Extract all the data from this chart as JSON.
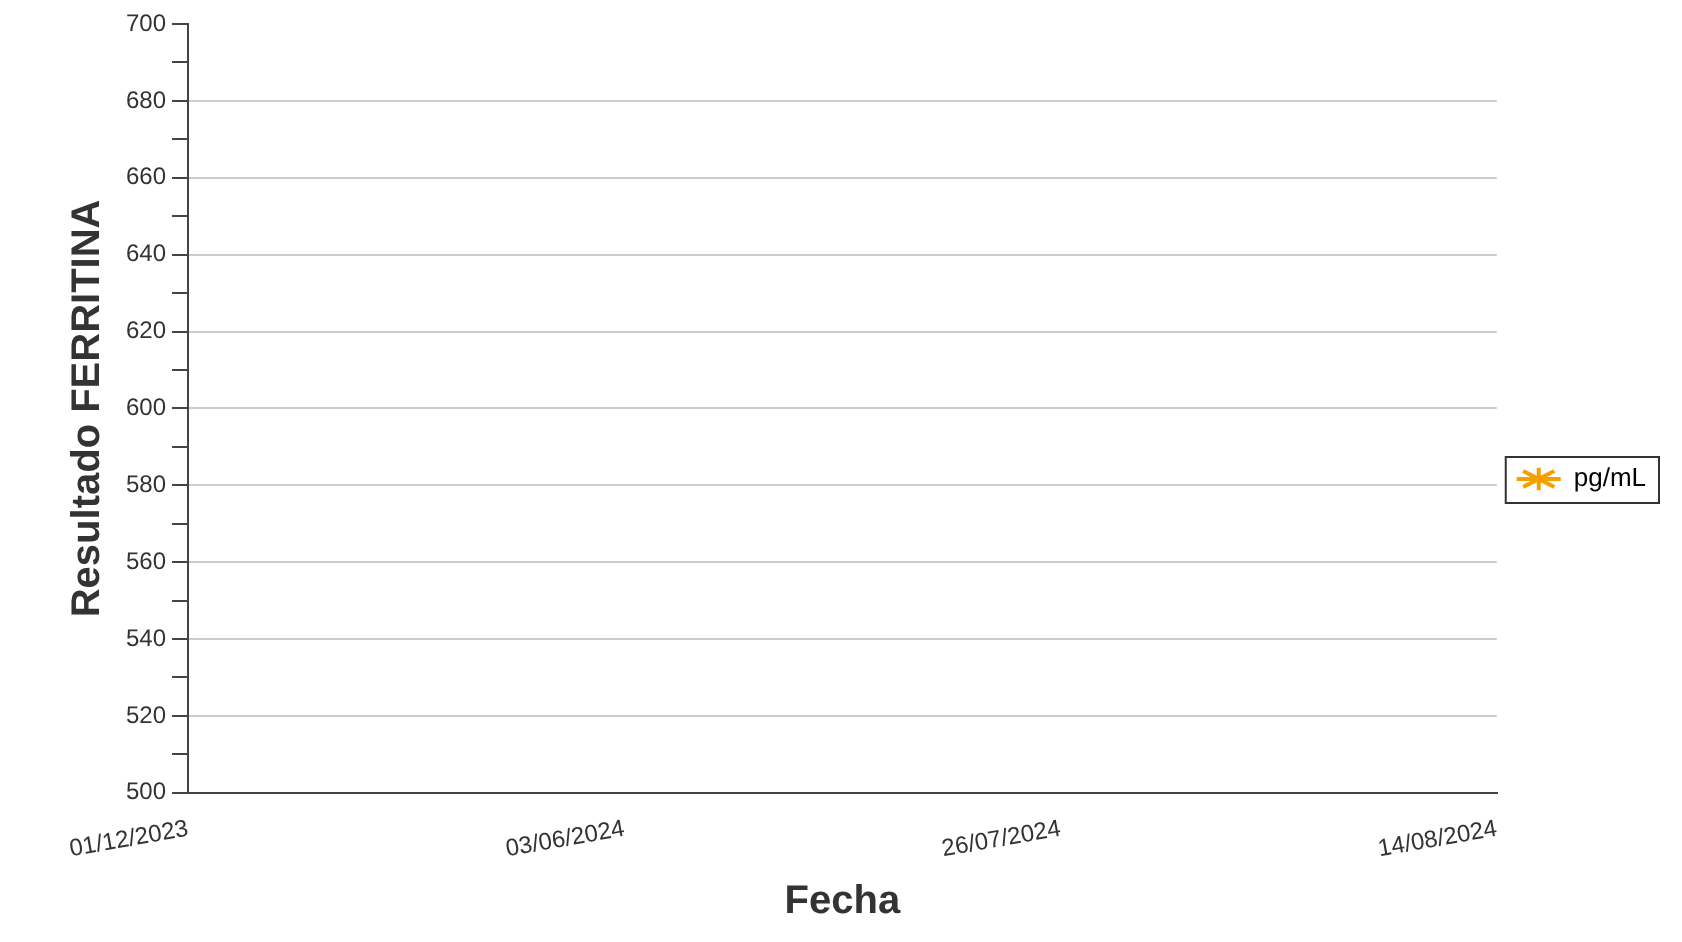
{
  "chart_data": {
    "type": "line",
    "xlabel": "Fecha",
    "ylabel": "Resultado FERRITINA",
    "categories": [
      "01/12/2023",
      "03/06/2024",
      "26/07/2024",
      "14/08/2024"
    ],
    "series": [
      {
        "name": "pg/mL",
        "color": "#f5a000",
        "values": [
          null,
          null,
          null,
          null
        ]
      }
    ],
    "ylim": [
      500,
      700
    ],
    "yticks": [
      500,
      {
        "value": 510,
        "label": null
      },
      520,
      {
        "value": 530,
        "label": null
      },
      540,
      {
        "value": 550,
        "label": null
      },
      560,
      {
        "value": 570,
        "label": null
      },
      580,
      {
        "value": 590,
        "label": null
      },
      600,
      {
        "value": 610,
        "label": null
      },
      620,
      {
        "value": 630,
        "label": null
      },
      640,
      {
        "value": 650,
        "label": null
      },
      660,
      {
        "value": 670,
        "label": null
      },
      680,
      {
        "value": 690,
        "label": null
      },
      700
    ],
    "grid": "y",
    "legend": "right",
    "marker": "star"
  }
}
